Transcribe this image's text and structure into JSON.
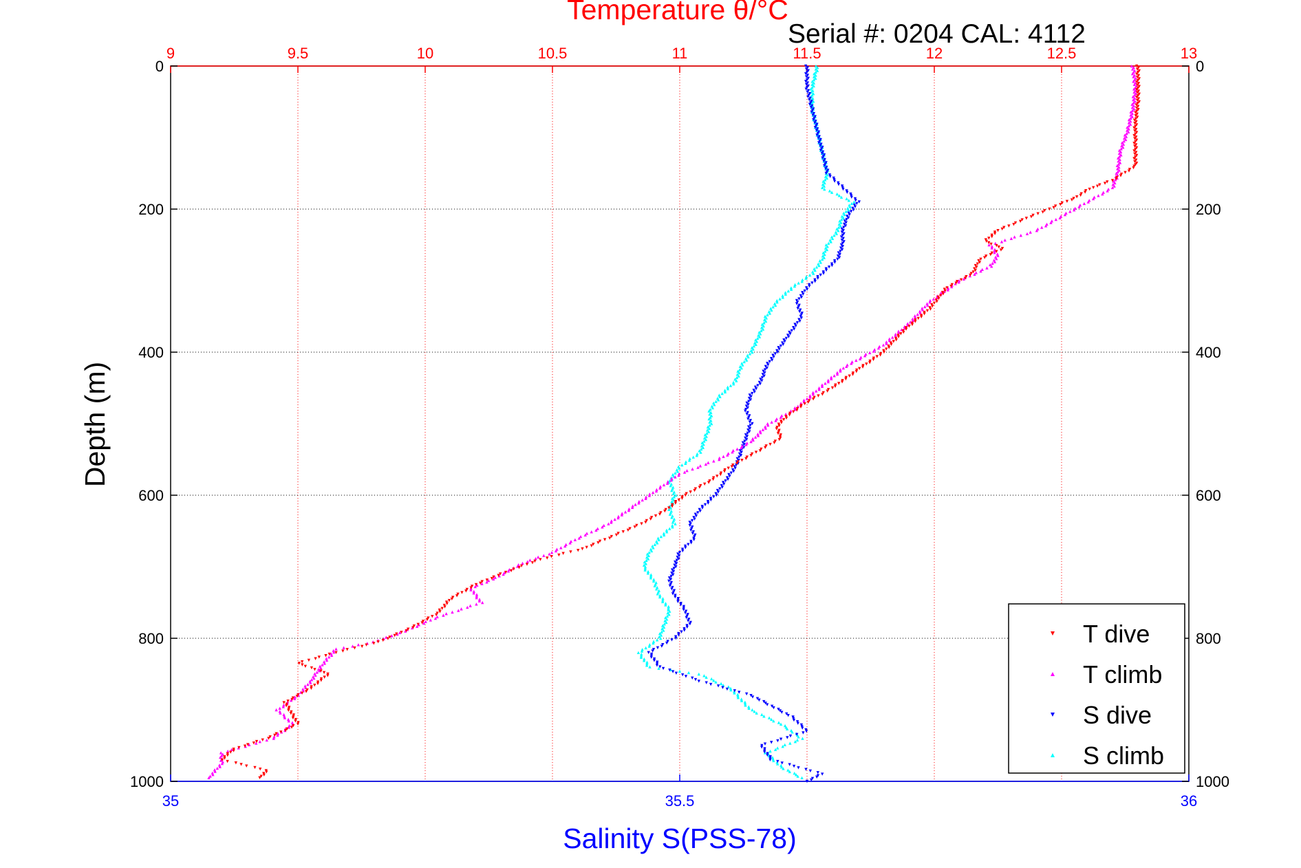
{
  "chart_data": {
    "type": "scatter",
    "title": "Temperature θ/°C",
    "annotation": "Serial #: 0204  CAL: 4112",
    "ylabel": "Depth (m)",
    "xlabel": "Salinity S(PSS-78)",
    "y_axis": {
      "range": [
        0,
        1000
      ],
      "reversed": true,
      "ticks": [
        0,
        200,
        400,
        600,
        800,
        1000
      ],
      "tick_labels": [
        "0",
        "200",
        "400",
        "600",
        "800",
        "1000"
      ]
    },
    "x_top_temperature": {
      "range": [
        9,
        13
      ],
      "ticks": [
        9,
        9.5,
        10,
        10.5,
        11,
        11.5,
        12,
        12.5,
        13
      ],
      "tick_labels": [
        "9",
        "9.5",
        "10",
        "10.5",
        "11",
        "11.5",
        "12",
        "12.5",
        "13"
      ],
      "color": "#ff0000"
    },
    "x_bottom_salinity": {
      "range": [
        35,
        36
      ],
      "ticks": [
        35,
        35.5,
        36
      ],
      "tick_labels": [
        "35",
        "35.5",
        "36"
      ],
      "color": "#0000ff"
    },
    "grid": true,
    "legend_position": "bottom-right",
    "series": [
      {
        "name": "T dive",
        "axis": "temperature",
        "color": "#ff0000",
        "marker": "triangle-down",
        "points": [
          [
            12.8,
            0
          ],
          [
            12.8,
            20
          ],
          [
            12.8,
            50
          ],
          [
            12.79,
            80
          ],
          [
            12.79,
            110
          ],
          [
            12.79,
            140
          ],
          [
            12.7,
            160
          ],
          [
            12.62,
            170
          ],
          [
            12.55,
            185
          ],
          [
            12.45,
            200
          ],
          [
            12.35,
            215
          ],
          [
            12.25,
            230
          ],
          [
            12.2,
            245
          ],
          [
            12.27,
            255
          ],
          [
            12.18,
            270
          ],
          [
            12.15,
            290
          ],
          [
            12.05,
            310
          ],
          [
            11.98,
            340
          ],
          [
            11.88,
            370
          ],
          [
            11.8,
            400
          ],
          [
            11.7,
            425
          ],
          [
            11.6,
            450
          ],
          [
            11.5,
            470
          ],
          [
            11.42,
            490
          ],
          [
            11.38,
            505
          ],
          [
            11.4,
            520
          ],
          [
            11.3,
            540
          ],
          [
            11.2,
            560
          ],
          [
            11.12,
            580
          ],
          [
            11.02,
            600
          ],
          [
            10.95,
            620
          ],
          [
            10.85,
            640
          ],
          [
            10.72,
            660
          ],
          [
            10.62,
            675
          ],
          [
            10.45,
            690
          ],
          [
            10.3,
            710
          ],
          [
            10.2,
            725
          ],
          [
            10.1,
            745
          ],
          [
            10.05,
            765
          ],
          [
            9.95,
            785
          ],
          [
            9.82,
            805
          ],
          [
            9.65,
            820
          ],
          [
            9.5,
            835
          ],
          [
            9.62,
            850
          ],
          [
            9.55,
            870
          ],
          [
            9.45,
            890
          ],
          [
            9.5,
            920
          ],
          [
            9.38,
            940
          ],
          [
            9.25,
            955
          ],
          [
            9.2,
            970
          ],
          [
            9.38,
            985
          ],
          [
            9.35,
            995
          ]
        ]
      },
      {
        "name": "T climb",
        "axis": "temperature",
        "color": "#ff00ff",
        "marker": "triangle-up",
        "points": [
          [
            12.78,
            0
          ],
          [
            12.79,
            30
          ],
          [
            12.78,
            60
          ],
          [
            12.76,
            90
          ],
          [
            12.73,
            120
          ],
          [
            12.72,
            150
          ],
          [
            12.7,
            170
          ],
          [
            12.6,
            190
          ],
          [
            12.5,
            210
          ],
          [
            12.4,
            230
          ],
          [
            12.22,
            250
          ],
          [
            12.25,
            265
          ],
          [
            12.22,
            280
          ],
          [
            12.1,
            300
          ],
          [
            11.98,
            330
          ],
          [
            11.9,
            360
          ],
          [
            11.8,
            390
          ],
          [
            11.65,
            420
          ],
          [
            11.55,
            450
          ],
          [
            11.45,
            480
          ],
          [
            11.35,
            500
          ],
          [
            11.28,
            525
          ],
          [
            11.15,
            550
          ],
          [
            11.0,
            570
          ],
          [
            10.92,
            590
          ],
          [
            10.82,
            615
          ],
          [
            10.72,
            640
          ],
          [
            10.6,
            660
          ],
          [
            10.5,
            680
          ],
          [
            10.38,
            695
          ],
          [
            10.28,
            715
          ],
          [
            10.18,
            730
          ],
          [
            10.22,
            750
          ],
          [
            10.05,
            770
          ],
          [
            9.92,
            790
          ],
          [
            9.8,
            805
          ],
          [
            9.65,
            815
          ],
          [
            9.6,
            835
          ],
          [
            9.55,
            860
          ],
          [
            9.5,
            880
          ],
          [
            9.42,
            900
          ],
          [
            9.48,
            920
          ],
          [
            9.4,
            940
          ],
          [
            9.2,
            960
          ],
          [
            9.2,
            975
          ],
          [
            9.15,
            995
          ]
        ]
      },
      {
        "name": "S dive",
        "axis": "salinity",
        "color": "#0000ff",
        "marker": "triangle-down",
        "points": [
          [
            35.625,
            0
          ],
          [
            35.625,
            30
          ],
          [
            35.63,
            60
          ],
          [
            35.635,
            90
          ],
          [
            35.64,
            120
          ],
          [
            35.645,
            150
          ],
          [
            35.66,
            170
          ],
          [
            35.675,
            190
          ],
          [
            35.665,
            210
          ],
          [
            35.66,
            230
          ],
          [
            35.66,
            250
          ],
          [
            35.655,
            270
          ],
          [
            35.64,
            290
          ],
          [
            35.625,
            310
          ],
          [
            35.615,
            330
          ],
          [
            35.62,
            350
          ],
          [
            35.61,
            370
          ],
          [
            35.595,
            400
          ],
          [
            35.585,
            420
          ],
          [
            35.58,
            440
          ],
          [
            35.57,
            460
          ],
          [
            35.565,
            480
          ],
          [
            35.57,
            500
          ],
          [
            35.565,
            520
          ],
          [
            35.56,
            540
          ],
          [
            35.555,
            560
          ],
          [
            35.545,
            580
          ],
          [
            35.535,
            600
          ],
          [
            35.52,
            620
          ],
          [
            35.51,
            640
          ],
          [
            35.515,
            660
          ],
          [
            35.5,
            680
          ],
          [
            35.495,
            700
          ],
          [
            35.49,
            720
          ],
          [
            35.495,
            740
          ],
          [
            35.505,
            760
          ],
          [
            35.51,
            780
          ],
          [
            35.495,
            800
          ],
          [
            35.47,
            820
          ],
          [
            35.48,
            840
          ],
          [
            35.52,
            860
          ],
          [
            35.57,
            880
          ],
          [
            35.61,
            910
          ],
          [
            35.625,
            930
          ],
          [
            35.58,
            950
          ],
          [
            35.59,
            970
          ],
          [
            35.64,
            990
          ],
          [
            35.625,
            1000
          ]
        ]
      },
      {
        "name": "S climb",
        "axis": "salinity",
        "color": "#00ffff",
        "marker": "triangle-up",
        "points": [
          [
            35.635,
            0
          ],
          [
            35.63,
            30
          ],
          [
            35.63,
            60
          ],
          [
            35.635,
            90
          ],
          [
            35.64,
            120
          ],
          [
            35.645,
            150
          ],
          [
            35.64,
            170
          ],
          [
            35.67,
            190
          ],
          [
            35.66,
            210
          ],
          [
            35.655,
            230
          ],
          [
            35.645,
            250
          ],
          [
            35.64,
            270
          ],
          [
            35.63,
            290
          ],
          [
            35.61,
            310
          ],
          [
            35.595,
            330
          ],
          [
            35.585,
            350
          ],
          [
            35.58,
            370
          ],
          [
            35.57,
            400
          ],
          [
            35.56,
            420
          ],
          [
            35.555,
            440
          ],
          [
            35.54,
            460
          ],
          [
            35.53,
            480
          ],
          [
            35.53,
            500
          ],
          [
            35.525,
            520
          ],
          [
            35.52,
            540
          ],
          [
            35.5,
            560
          ],
          [
            35.49,
            580
          ],
          [
            35.495,
            600
          ],
          [
            35.49,
            620
          ],
          [
            35.495,
            640
          ],
          [
            35.48,
            660
          ],
          [
            35.47,
            680
          ],
          [
            35.465,
            700
          ],
          [
            35.475,
            720
          ],
          [
            35.48,
            740
          ],
          [
            35.49,
            760
          ],
          [
            35.485,
            780
          ],
          [
            35.48,
            800
          ],
          [
            35.46,
            820
          ],
          [
            35.47,
            840
          ],
          [
            35.52,
            850
          ],
          [
            35.55,
            870
          ],
          [
            35.57,
            900
          ],
          [
            35.6,
            920
          ],
          [
            35.62,
            940
          ],
          [
            35.585,
            960
          ],
          [
            35.6,
            980
          ],
          [
            35.62,
            995
          ]
        ]
      }
    ]
  }
}
